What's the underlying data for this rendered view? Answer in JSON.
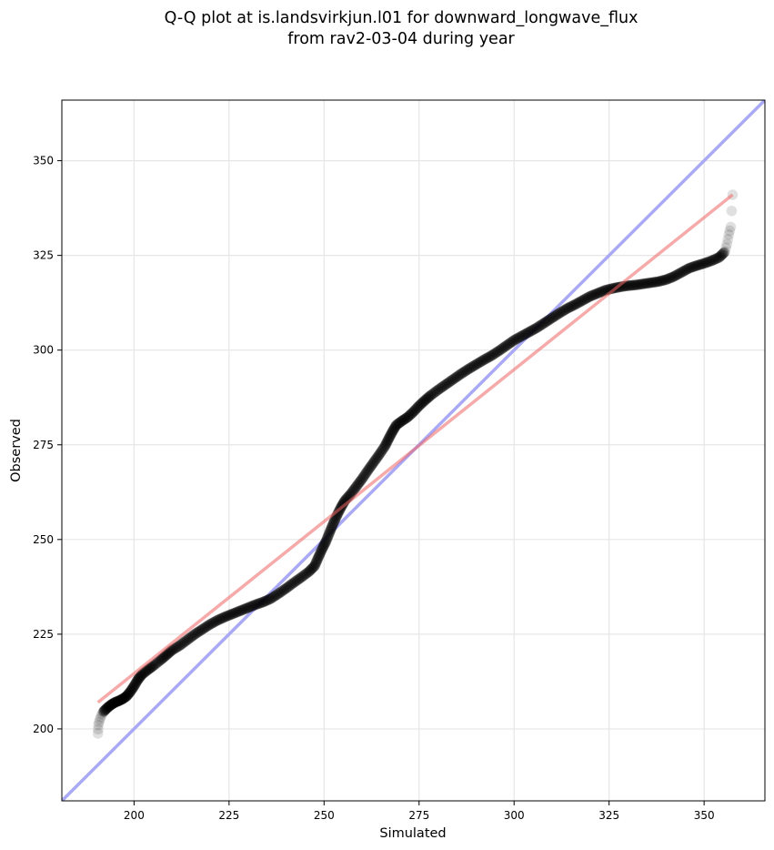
{
  "chart_data": {
    "type": "scatter",
    "title": "Q-Q plot at is.landsvirkjun.l01 for downward_longwave_flux",
    "subtitle": "from rav2-03-04 during year",
    "xlabel": "Simulated",
    "ylabel": "Observed",
    "xlim": [
      181,
      366
    ],
    "ylim": [
      181,
      366
    ],
    "xticks": [
      200,
      225,
      250,
      275,
      300,
      325,
      350
    ],
    "yticks": [
      200,
      225,
      250,
      275,
      300,
      325,
      350
    ],
    "grid": true,
    "legend": "none",
    "colors": {
      "points": "#000000",
      "identity_line": "#a9a9f5",
      "fit_line": "#f5a9a9",
      "grid": "#e6e6e6"
    },
    "identity_line": {
      "x": [
        181,
        366
      ],
      "y": [
        181,
        366
      ]
    },
    "fit_line": {
      "x": [
        190.5,
        357.5
      ],
      "y": [
        207,
        341
      ]
    },
    "quantile_points": [
      [
        190.5,
        198.8
      ],
      [
        190.6,
        201.0
      ],
      [
        191.0,
        202.5
      ],
      [
        191.5,
        203.8
      ],
      [
        192.0,
        204.6
      ],
      [
        193.0,
        205.6
      ],
      [
        194.0,
        206.4
      ],
      [
        195.0,
        207.0
      ],
      [
        196.0,
        207.4
      ],
      [
        197.0,
        207.9
      ],
      [
        198.0,
        208.6
      ],
      [
        199.0,
        209.8
      ],
      [
        200.0,
        211.3
      ],
      [
        201.0,
        213.0
      ],
      [
        202.0,
        214.3
      ],
      [
        203.5,
        215.5
      ],
      [
        205.0,
        216.6
      ],
      [
        207.0,
        218.2
      ],
      [
        208.5,
        219.5
      ],
      [
        210.0,
        220.8
      ],
      [
        212.0,
        222.0
      ],
      [
        214.0,
        223.5
      ],
      [
        216.0,
        225.0
      ],
      [
        218.0,
        226.3
      ],
      [
        220.0,
        227.6
      ],
      [
        222.0,
        228.7
      ],
      [
        224.0,
        229.6
      ],
      [
        226.0,
        230.4
      ],
      [
        228.0,
        231.2
      ],
      [
        230.0,
        232.0
      ],
      [
        232.0,
        232.8
      ],
      [
        234.0,
        233.5
      ],
      [
        236.0,
        234.4
      ],
      [
        238.0,
        235.7
      ],
      [
        240.0,
        237.1
      ],
      [
        242.0,
        238.6
      ],
      [
        244.0,
        240.0
      ],
      [
        246.0,
        241.5
      ],
      [
        247.5,
        243.0
      ],
      [
        248.5,
        245.3
      ],
      [
        249.5,
        247.5
      ],
      [
        250.5,
        249.5
      ],
      [
        251.5,
        252.0
      ],
      [
        252.5,
        254.4
      ],
      [
        253.5,
        256.6
      ],
      [
        254.5,
        258.6
      ],
      [
        255.5,
        260.3
      ],
      [
        257.0,
        262.0
      ],
      [
        258.5,
        264.0
      ],
      [
        260.0,
        266.0
      ],
      [
        261.5,
        268.2
      ],
      [
        263.0,
        270.3
      ],
      [
        264.5,
        272.4
      ],
      [
        266.0,
        274.6
      ],
      [
        267.0,
        276.6
      ],
      [
        268.0,
        278.5
      ],
      [
        269.0,
        280.2
      ],
      [
        270.5,
        281.3
      ],
      [
        272.0,
        282.3
      ],
      [
        273.5,
        283.7
      ],
      [
        275.0,
        285.3
      ],
      [
        276.5,
        286.7
      ],
      [
        278.0,
        288.0
      ],
      [
        280.0,
        289.5
      ],
      [
        282.0,
        290.9
      ],
      [
        284.0,
        292.3
      ],
      [
        286.0,
        293.7
      ],
      [
        288.0,
        295.0
      ],
      [
        290.0,
        296.2
      ],
      [
        292.0,
        297.4
      ],
      [
        294.0,
        298.5
      ],
      [
        296.0,
        299.8
      ],
      [
        298.0,
        301.2
      ],
      [
        300.0,
        302.6
      ],
      [
        302.0,
        303.7
      ],
      [
        304.0,
        304.8
      ],
      [
        306.0,
        305.9
      ],
      [
        308.0,
        307.2
      ],
      [
        310.0,
        308.5
      ],
      [
        312.0,
        309.8
      ],
      [
        314.0,
        311.0
      ],
      [
        316.0,
        312.0
      ],
      [
        318.0,
        313.1
      ],
      [
        320.0,
        314.2
      ],
      [
        322.0,
        315.0
      ],
      [
        324.0,
        315.8
      ],
      [
        326.0,
        316.3
      ],
      [
        328.0,
        316.7
      ],
      [
        330.0,
        317.0
      ],
      [
        332.0,
        317.2
      ],
      [
        334.0,
        317.5
      ],
      [
        336.0,
        317.8
      ],
      [
        338.0,
        318.1
      ],
      [
        340.0,
        318.6
      ],
      [
        342.0,
        319.4
      ],
      [
        344.0,
        320.5
      ],
      [
        346.0,
        321.6
      ],
      [
        348.0,
        322.3
      ],
      [
        350.0,
        322.9
      ],
      [
        352.0,
        323.6
      ],
      [
        354.0,
        324.5
      ],
      [
        355.5,
        326.0
      ],
      [
        356.0,
        328.0
      ],
      [
        356.5,
        330.5
      ],
      [
        357.0,
        332.5
      ],
      [
        357.5,
        341.0
      ]
    ]
  }
}
